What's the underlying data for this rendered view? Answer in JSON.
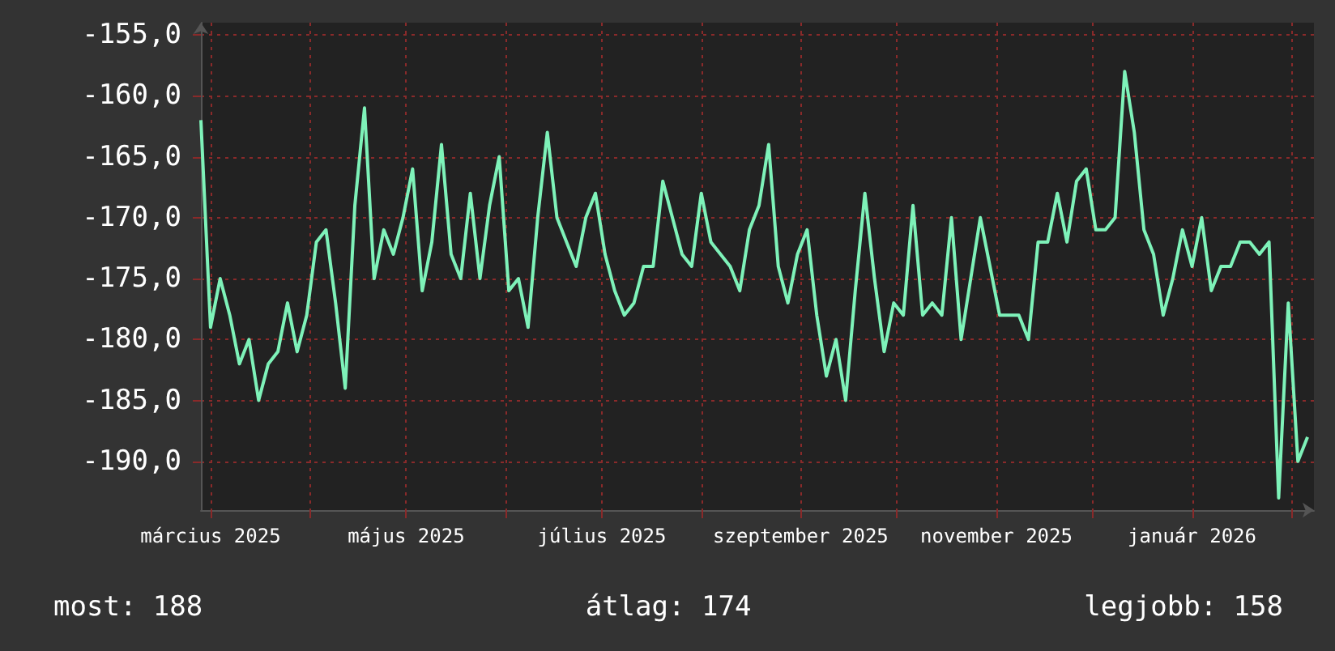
{
  "chart_data": {
    "type": "line",
    "xlim": [
      "2025-02-26",
      "2026-02-08"
    ],
    "ylim": [
      -194,
      -154
    ],
    "xticks": [
      {
        "value": "2025-03-01",
        "label": "március 2025"
      },
      {
        "value": "2025-04-01",
        "label": null
      },
      {
        "value": "2025-05-01",
        "label": "május 2025"
      },
      {
        "value": "2025-06-01",
        "label": null
      },
      {
        "value": "2025-07-01",
        "label": "július 2025"
      },
      {
        "value": "2025-08-01",
        "label": null
      },
      {
        "value": "2025-09-01",
        "label": "szeptember 2025"
      },
      {
        "value": "2025-10-01",
        "label": null
      },
      {
        "value": "2025-11-01",
        "label": "november 2025"
      },
      {
        "value": "2025-12-01",
        "label": null
      },
      {
        "value": "2026-01-01",
        "label": "január 2026"
      },
      {
        "value": "2026-02-01",
        "label": null
      }
    ],
    "yticks": [
      {
        "value": -155,
        "label": "-155,0"
      },
      {
        "value": -160,
        "label": "-160,0"
      },
      {
        "value": -165,
        "label": "-165,0"
      },
      {
        "value": -170,
        "label": "-170,0"
      },
      {
        "value": -175,
        "label": "-175,0"
      },
      {
        "value": -180,
        "label": "-180,0"
      },
      {
        "value": -185,
        "label": "-185,0"
      },
      {
        "value": -190,
        "label": "-190,0"
      }
    ],
    "grid": true,
    "marker": "none",
    "x": [
      "2025-02-26",
      "2025-03-01",
      "2025-03-04",
      "2025-03-07",
      "2025-03-10",
      "2025-03-13",
      "2025-03-16",
      "2025-03-19",
      "2025-03-22",
      "2025-03-25",
      "2025-03-28",
      "2025-03-31",
      "2025-04-03",
      "2025-04-06",
      "2025-04-09",
      "2025-04-12",
      "2025-04-15",
      "2025-04-18",
      "2025-04-21",
      "2025-04-24",
      "2025-04-27",
      "2025-04-30",
      "2025-05-03",
      "2025-05-06",
      "2025-05-09",
      "2025-05-12",
      "2025-05-15",
      "2025-05-18",
      "2025-05-21",
      "2025-05-24",
      "2025-05-27",
      "2025-05-30",
      "2025-06-02",
      "2025-06-05",
      "2025-06-08",
      "2025-06-11",
      "2025-06-14",
      "2025-06-17",
      "2025-06-20",
      "2025-06-23",
      "2025-06-26",
      "2025-06-29",
      "2025-07-02",
      "2025-07-05",
      "2025-07-08",
      "2025-07-11",
      "2025-07-14",
      "2025-07-17",
      "2025-07-20",
      "2025-07-23",
      "2025-07-26",
      "2025-07-29",
      "2025-08-01",
      "2025-08-04",
      "2025-08-07",
      "2025-08-10",
      "2025-08-13",
      "2025-08-16",
      "2025-08-19",
      "2025-08-22",
      "2025-08-25",
      "2025-08-28",
      "2025-08-31",
      "2025-09-03",
      "2025-09-06",
      "2025-09-09",
      "2025-09-12",
      "2025-09-15",
      "2025-09-18",
      "2025-09-21",
      "2025-09-24",
      "2025-09-27",
      "2025-09-30",
      "2025-10-03",
      "2025-10-06",
      "2025-10-09",
      "2025-10-12",
      "2025-10-15",
      "2025-10-18",
      "2025-10-21",
      "2025-10-24",
      "2025-10-27",
      "2025-10-30",
      "2025-11-02",
      "2025-11-05",
      "2025-11-08",
      "2025-11-11",
      "2025-11-14",
      "2025-11-17",
      "2025-11-20",
      "2025-11-23",
      "2025-11-26",
      "2025-11-29",
      "2025-12-02",
      "2025-12-05",
      "2025-12-08",
      "2025-12-11",
      "2025-12-14",
      "2025-12-17",
      "2025-12-20",
      "2025-12-23",
      "2025-12-26",
      "2025-12-29",
      "2026-01-01",
      "2026-01-04",
      "2026-01-07",
      "2026-01-10",
      "2026-01-13",
      "2026-01-16",
      "2026-01-19",
      "2026-01-22",
      "2026-01-25",
      "2026-01-28",
      "2026-01-31",
      "2026-02-03",
      "2026-02-06"
    ],
    "series": [
      {
        "color": "#7ef2b9",
        "values": [
          -162,
          -179,
          -175,
          -178,
          -182,
          -180,
          -185,
          -182,
          -181,
          -177,
          -181,
          -178,
          -172,
          -171,
          -177,
          -184,
          -169,
          -161,
          -175,
          -171,
          -173,
          -170,
          -166,
          -176,
          -172,
          -164,
          -173,
          -175,
          -168,
          -175,
          -169,
          -165,
          -176,
          -175,
          -179,
          -170,
          -163,
          -170,
          -172,
          -174,
          -170,
          -168,
          -173,
          -176,
          -178,
          -177,
          -174,
          -174,
          -167,
          -170,
          -173,
          -174,
          -168,
          -172,
          -173,
          -174,
          -176,
          -171,
          -169,
          -164,
          -174,
          -177,
          -173,
          -171,
          -178,
          -183,
          -180,
          -185,
          -176,
          -168,
          -175,
          -181,
          -177,
          -178,
          -169,
          -178,
          -177,
          -178,
          -170,
          -180,
          -175,
          -170,
          -174,
          -178,
          -178,
          -178,
          -180,
          -172,
          -172,
          -168,
          -172,
          -167,
          -166,
          -171,
          -171,
          -170,
          -158,
          -163,
          -171,
          -173,
          -178,
          -175,
          -171,
          -174,
          -170,
          -176,
          -174,
          -174,
          -172,
          -172,
          -173,
          -172,
          -193,
          -177,
          -190,
          -188
        ]
      }
    ],
    "annotations": [
      "most: 188",
      "átlag: 174",
      "legjobb: 158"
    ]
  }
}
